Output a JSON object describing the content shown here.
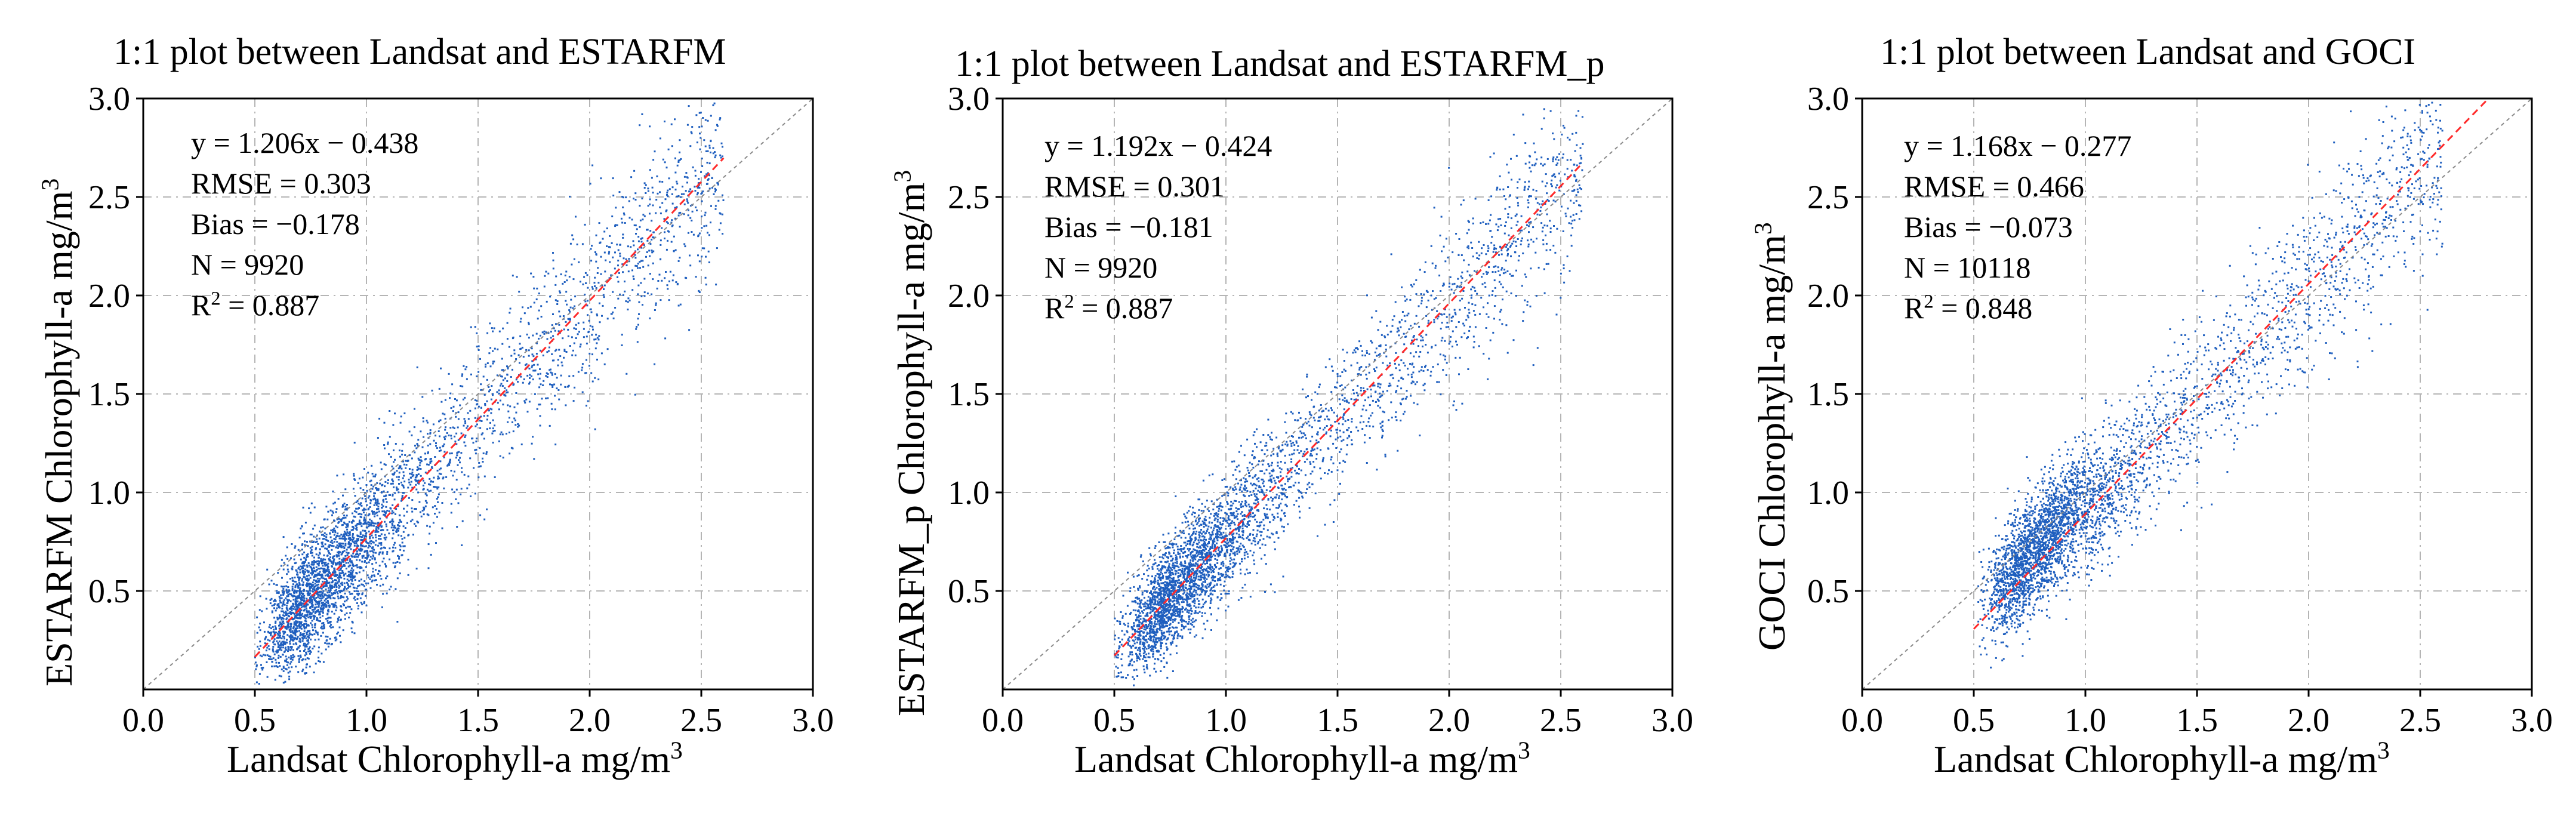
{
  "superscript_3": "3",
  "superscript_2": "2",
  "chart_data": [
    {
      "type": "scatter",
      "title": "1:1 plot between Landsat and ESTARFM",
      "xlabel": "Landsat Chlorophyll-a mg/m",
      "ylabel": "ESTARFM Chlorophyll-a mg/m",
      "xlim": [
        0.0,
        3.0
      ],
      "ylim": [
        0.0,
        3.0
      ],
      "xticks": [
        "0.0",
        "0.5",
        "1.0",
        "1.5",
        "2.0",
        "2.5",
        "3.0"
      ],
      "yticks": [
        "0.5",
        "1.0",
        "1.5",
        "2.0",
        "2.5",
        "3.0"
      ],
      "grid": true,
      "point_color": "#1f5fbf",
      "fit_color": "#ff2a2a",
      "fit": {
        "slope": 1.206,
        "intercept": -0.438,
        "x_range": [
          0.5,
          2.6
        ]
      },
      "identity_line": true,
      "stats": {
        "equation": "y = 1.206x − 0.438",
        "rmse": "RMSE = 0.303",
        "bias": "Bias = −0.178",
        "n": "N = 9920",
        "r2_label": "R",
        "r2_value": " = 0.887"
      },
      "sample_summary": {
        "n": 9920,
        "x_min": 0.5,
        "x_max": 2.6,
        "noise_sd": 0.17,
        "mean_offset": 0.0
      }
    },
    {
      "type": "scatter",
      "title": "1:1 plot between Landsat and ESTARFM_p",
      "xlabel": "Landsat Chlorophyll-a mg/m",
      "ylabel": "ESTARFM_p Chlorophyll-a mg/m",
      "xlim": [
        0.0,
        3.0
      ],
      "ylim": [
        0.0,
        3.0
      ],
      "xticks": [
        "0.0",
        "0.5",
        "1.0",
        "1.5",
        "2.0",
        "2.5",
        "3.0"
      ],
      "yticks": [
        "0.5",
        "1.0",
        "1.5",
        "2.0",
        "2.5",
        "3.0"
      ],
      "grid": true,
      "point_color": "#1f5fbf",
      "fit_color": "#ff2a2a",
      "fit": {
        "slope": 1.192,
        "intercept": -0.424,
        "x_range": [
          0.5,
          2.6
        ]
      },
      "identity_line": true,
      "stats": {
        "equation": "y = 1.192x − 0.424",
        "rmse": "RMSE = 0.301",
        "bias": "Bias = −0.181",
        "n": "N = 9920",
        "r2_label": "R",
        "r2_value": " = 0.887"
      },
      "sample_summary": {
        "n": 9920,
        "x_min": 0.5,
        "x_max": 2.6,
        "noise_sd": 0.15,
        "mean_offset": 0.0
      }
    },
    {
      "type": "scatter",
      "title": "1:1 plot between Landsat and GOCI",
      "xlabel": "Landsat Chlorophyll-a mg/m",
      "ylabel": "GOCI Chlorophyll-a mg/m",
      "xlim": [
        0.0,
        3.0
      ],
      "ylim": [
        0.0,
        3.0
      ],
      "xticks": [
        "0.0",
        "0.5",
        "1.0",
        "1.5",
        "2.0",
        "2.5",
        "3.0"
      ],
      "yticks": [
        "0.5",
        "1.0",
        "1.5",
        "2.0",
        "2.5",
        "3.0"
      ],
      "grid": true,
      "point_color": "#1f5fbf",
      "fit_color": "#ff2a2a",
      "fit": {
        "slope": 1.168,
        "intercept": -0.277,
        "x_range": [
          0.5,
          2.8
        ]
      },
      "identity_line": true,
      "stats": {
        "equation": "y = 1.168x − 0.277",
        "rmse": "RMSE = 0.466",
        "bias": "Bias = −0.073",
        "n": "N = 10118",
        "r2_label": "R",
        "r2_value": " = 0.848"
      },
      "sample_summary": {
        "n": 10118,
        "x_min": 0.52,
        "x_max": 2.6,
        "noise_sd": 0.16,
        "mean_offset": 0.08
      }
    }
  ]
}
